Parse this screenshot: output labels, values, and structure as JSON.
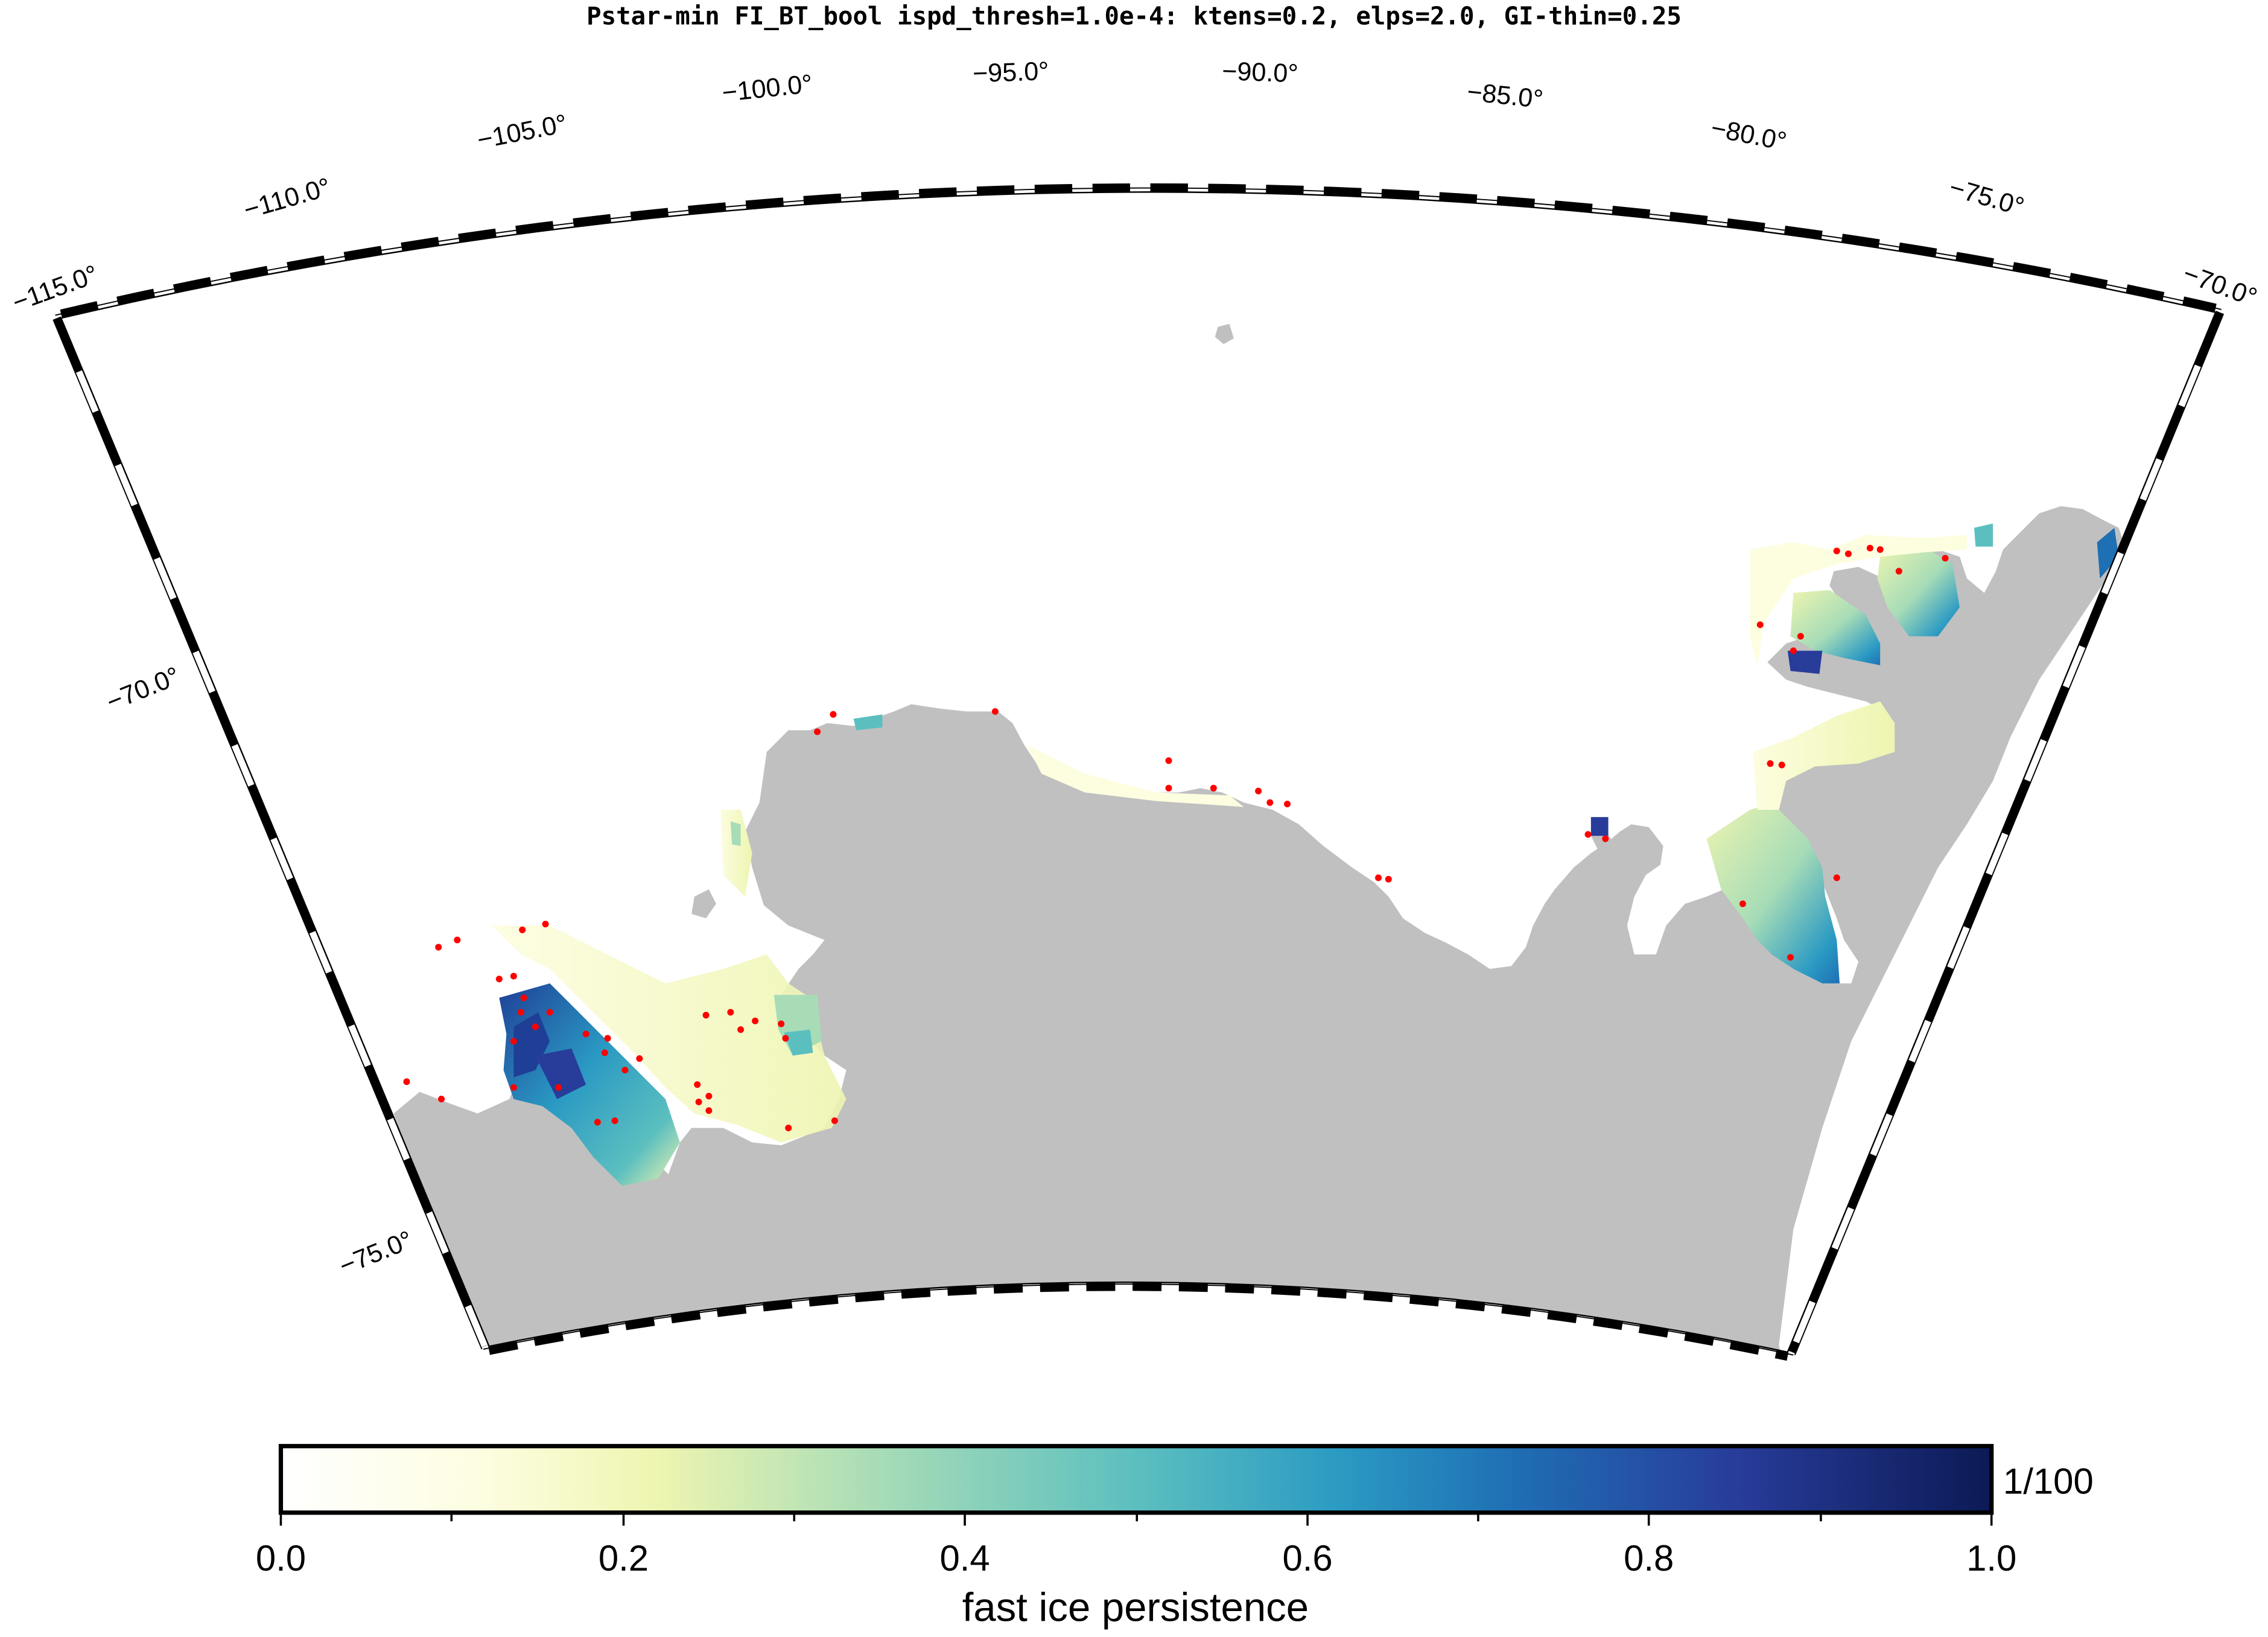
{
  "title": "Pstar-min FI_BT_bool ispd_thresh=1.0e-4: ktens=0.2, elps=2.0, GI-thin=0.25",
  "longitude_labels": [
    "−115.0°",
    "−110.0°",
    "−105.0°",
    "−100.0°",
    "−95.0°",
    "−90.0°",
    "−85.0°",
    "−80.0°",
    "−75.0°",
    "−70.0°"
  ],
  "latitude_labels": [
    "−70.0°",
    "−75.0°"
  ],
  "colorbar": {
    "title": "fast ice persistence",
    "tick_labels": [
      "0.0",
      "0.2",
      "0.4",
      "0.6",
      "0.8",
      "1.0"
    ],
    "unit_label": "1/100",
    "colors": [
      "#ffffff",
      "#fdfde0",
      "#eef5b0",
      "#a7dcb7",
      "#5cbfbf",
      "#2a9ac3",
      "#1f6fb4",
      "#283c9a",
      "#0c1a55"
    ]
  },
  "colors": {
    "land": "#c0c0c0",
    "grounded_iceberg": "#ff0000",
    "frame_dark": "#000000",
    "frame_light": "#ffffff"
  }
}
